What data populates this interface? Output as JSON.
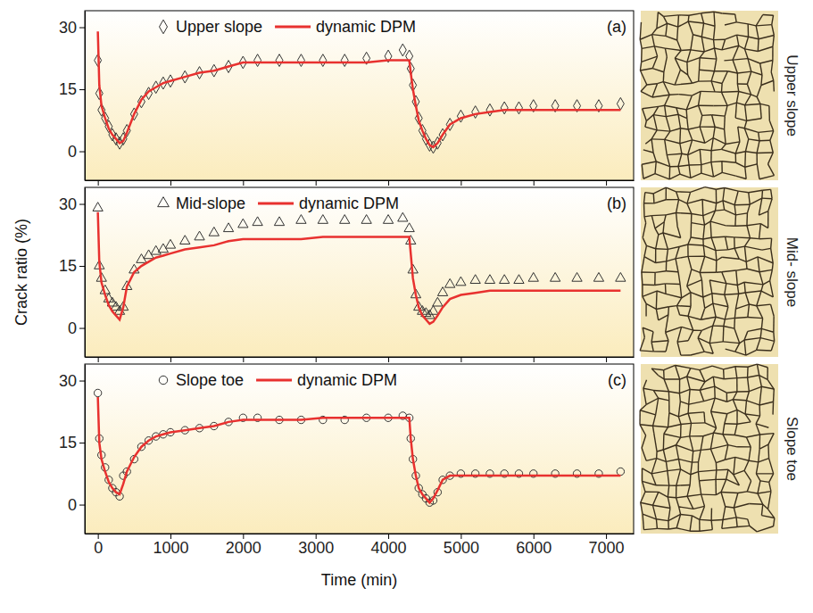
{
  "chart_data": [
    {
      "type": "line",
      "panel_label": "(a)",
      "image_label": "Upper slope",
      "legend": "top",
      "tick_labels": "y",
      "xlim": [
        -180,
        7380
      ],
      "xticks": [
        0,
        1000,
        2000,
        3000,
        4000,
        5000,
        6000,
        7000
      ],
      "ylim": [
        -7,
        34
      ],
      "yticks": [
        0,
        15,
        30
      ],
      "x": [
        0,
        20,
        50,
        100,
        150,
        200,
        250,
        300,
        350,
        400,
        500,
        600,
        700,
        800,
        900,
        1000,
        1200,
        1400,
        1600,
        1800,
        2000,
        2200,
        2500,
        2800,
        3100,
        3400,
        3700,
        4000,
        4200,
        4290,
        4310,
        4340,
        4380,
        4420,
        4470,
        4520,
        4570,
        4620,
        4680,
        4750,
        4850,
        5000,
        5200,
        5400,
        5600,
        5800,
        6000,
        6300,
        6600,
        6900,
        7200
      ],
      "series": [
        {
          "name": "Upper slope",
          "type": "scatter",
          "marker": "diamond",
          "color": "#333333",
          "values": [
            22,
            14,
            10,
            8,
            6,
            4,
            3,
            2,
            3,
            5,
            9,
            12,
            14,
            15.5,
            16.5,
            17,
            18,
            19,
            19.5,
            20.5,
            21.5,
            22,
            22,
            22,
            22,
            22,
            22.5,
            23,
            24.5,
            23,
            20,
            16,
            12,
            8,
            5,
            3,
            1.5,
            1,
            2,
            4,
            6.5,
            8.5,
            9.5,
            10,
            10.5,
            10.5,
            11,
            11,
            11,
            11,
            11.5
          ]
        },
        {
          "name": "dynamic DPM",
          "type": "line",
          "line_style": "solid",
          "color": "#e8312f",
          "values": [
            29,
            16,
            11,
            8,
            5.5,
            4,
            3,
            2,
            2.5,
            4.5,
            9,
            12.5,
            14.5,
            15.5,
            16.5,
            17,
            18,
            19,
            19.5,
            20.5,
            21.5,
            21.5,
            21.5,
            21.5,
            21.5,
            21.5,
            21.5,
            22,
            22,
            22,
            19,
            15,
            11,
            7.5,
            5,
            3,
            1.5,
            1,
            2,
            4,
            6.5,
            8,
            9,
            9.5,
            10,
            10,
            10,
            10,
            10,
            10,
            10
          ]
        }
      ]
    },
    {
      "type": "line",
      "panel_label": "(b)",
      "image_label": "Mid- slope",
      "legend": "top",
      "tick_labels": "y",
      "ylabel": "Crack ratio (%)",
      "xlim": [
        -180,
        7380
      ],
      "xticks": [
        0,
        1000,
        2000,
        3000,
        4000,
        5000,
        6000,
        7000
      ],
      "ylim": [
        -7,
        34
      ],
      "yticks": [
        0,
        15,
        30
      ],
      "x": [
        0,
        20,
        50,
        100,
        150,
        200,
        250,
        300,
        350,
        400,
        500,
        600,
        700,
        800,
        900,
        1000,
        1200,
        1400,
        1600,
        1800,
        2000,
        2200,
        2500,
        2800,
        3100,
        3400,
        3700,
        4000,
        4200,
        4290,
        4310,
        4340,
        4380,
        4420,
        4470,
        4520,
        4570,
        4620,
        4680,
        4750,
        4850,
        5000,
        5200,
        5400,
        5600,
        5800,
        6000,
        6300,
        6600,
        6900,
        7200
      ],
      "series": [
        {
          "name": "Mid-slope",
          "type": "scatter",
          "marker": "triangle",
          "color": "#333333",
          "values": [
            29,
            15,
            12,
            9,
            7,
            6,
            5,
            4,
            5,
            10,
            14,
            16.5,
            17.5,
            18.5,
            19,
            20,
            21,
            22,
            23,
            24,
            25,
            25.5,
            25.5,
            26,
            26,
            26,
            26,
            26,
            26.5,
            24,
            21,
            14,
            8,
            5,
            4,
            3.5,
            3,
            4,
            6,
            8.5,
            10.5,
            11,
            11.5,
            11.5,
            11.5,
            11.5,
            12,
            12,
            12,
            12,
            12
          ]
        },
        {
          "name": "dynamic DPM",
          "type": "line",
          "line_style": "solid",
          "color": "#e8312f",
          "values": [
            28,
            16,
            11,
            8,
            5.5,
            4,
            3,
            2,
            5,
            10,
            13.5,
            15,
            16,
            17,
            17.5,
            18,
            19,
            19.5,
            20,
            21,
            21.5,
            21.5,
            21.5,
            21.5,
            22,
            22,
            22,
            22,
            22,
            22,
            18,
            12,
            8,
            5,
            3,
            2,
            1,
            1.5,
            3,
            5,
            7,
            8,
            8.5,
            9,
            9,
            9,
            9,
            9,
            9,
            9,
            9
          ]
        }
      ]
    },
    {
      "type": "line",
      "panel_label": "(c)",
      "image_label": "Slope toe",
      "legend": "top",
      "xlabel": "Time (min)",
      "xlim": [
        -180,
        7380
      ],
      "xticks": [
        0,
        1000,
        2000,
        3000,
        4000,
        5000,
        6000,
        7000
      ],
      "ylim": [
        -7,
        34
      ],
      "yticks": [
        0,
        15,
        30
      ],
      "x": [
        0,
        20,
        50,
        100,
        150,
        200,
        250,
        300,
        350,
        400,
        500,
        600,
        700,
        800,
        900,
        1000,
        1200,
        1400,
        1600,
        1800,
        2000,
        2200,
        2500,
        2800,
        3100,
        3400,
        3700,
        4000,
        4200,
        4290,
        4310,
        4340,
        4380,
        4420,
        4470,
        4520,
        4570,
        4620,
        4680,
        4750,
        4850,
        5000,
        5200,
        5400,
        5600,
        5800,
        6000,
        6300,
        6600,
        6900,
        7200
      ],
      "series": [
        {
          "name": "Slope toe",
          "type": "scatter",
          "marker": "circle",
          "color": "#333333",
          "values": [
            27,
            16,
            12,
            9,
            6,
            4,
            3,
            2,
            7,
            8,
            11,
            14,
            15.5,
            16.5,
            17,
            17.5,
            18,
            18.5,
            19,
            20,
            21,
            21,
            20.5,
            20.5,
            20.5,
            20.5,
            21,
            21,
            21.5,
            21,
            16,
            11,
            7,
            4,
            2.5,
            1.5,
            0.5,
            1,
            3,
            6,
            7,
            7.5,
            7.5,
            7.5,
            7.5,
            7.5,
            7.5,
            7.5,
            7.5,
            7.5,
            8
          ]
        },
        {
          "name": "dynamic DPM",
          "type": "line",
          "line_style": "solid",
          "color": "#e8312f",
          "values": [
            26,
            15,
            11,
            8,
            5.5,
            4,
            3,
            2.5,
            5,
            8,
            11.5,
            14,
            15.5,
            16.5,
            17,
            17.5,
            18,
            18.5,
            19,
            20,
            20.5,
            20.5,
            20.5,
            20.5,
            21,
            21,
            21,
            21,
            21,
            21,
            16,
            11,
            7,
            4,
            2.5,
            1.5,
            0.5,
            1.5,
            3.5,
            6,
            7,
            7,
            7,
            7,
            7,
            7,
            7,
            7,
            7,
            7,
            7
          ]
        }
      ]
    }
  ]
}
